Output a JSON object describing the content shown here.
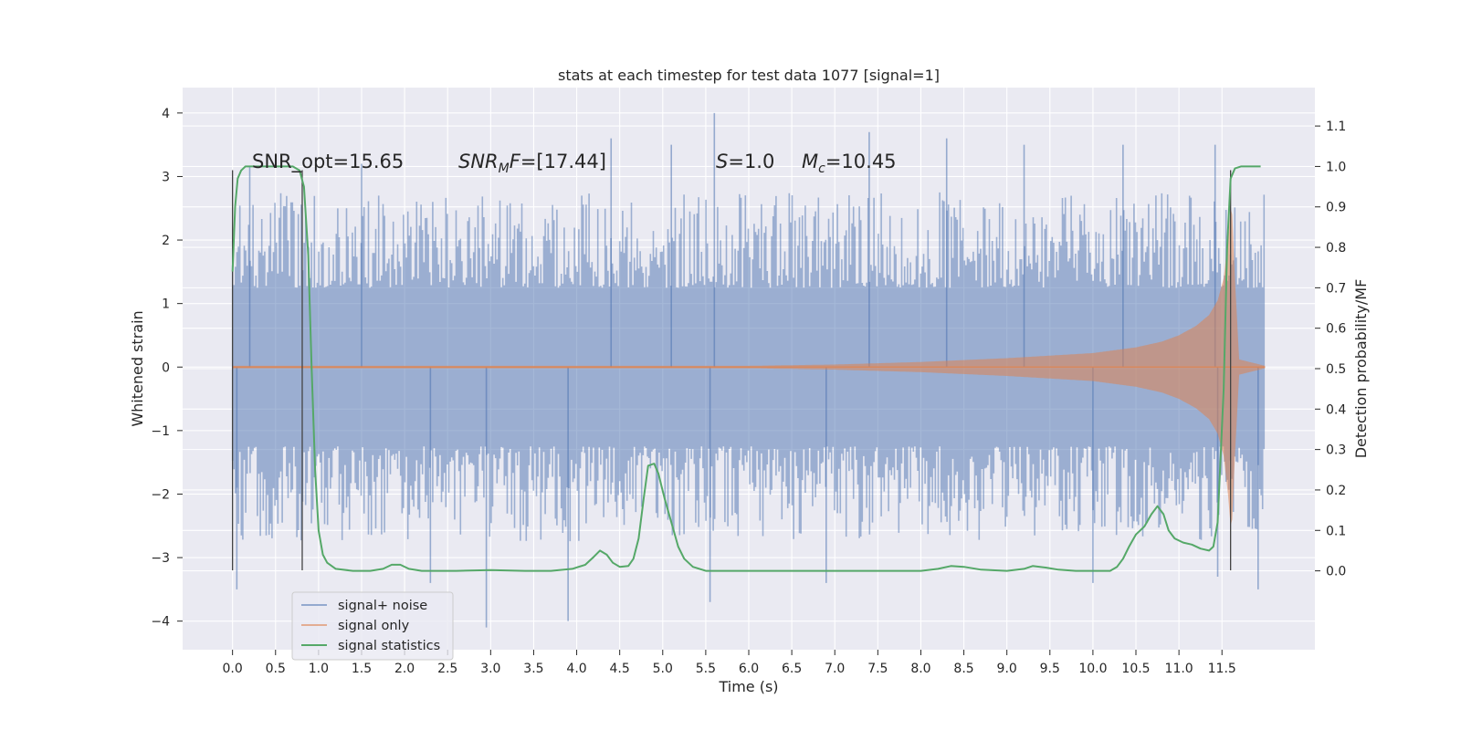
{
  "chart_data": {
    "type": "line",
    "title": "stats at each timestep for test data 1077 [signal=1]",
    "xlabel": "Time (s)",
    "ylabel": "Whitened strain",
    "y2label": "Detection probability/MF",
    "xlim": [
      -0.58,
      12.58
    ],
    "ylim": [
      -4.45,
      4.4
    ],
    "y2lim": [
      -0.195,
      1.195
    ],
    "x_ticks": [
      0.0,
      0.5,
      1.0,
      1.5,
      2.0,
      2.5,
      3.0,
      3.5,
      4.0,
      4.5,
      5.0,
      5.5,
      6.0,
      6.5,
      7.0,
      7.5,
      8.0,
      8.5,
      9.0,
      9.5,
      10.0,
      10.5,
      11.0,
      11.5
    ],
    "x_tick_labels": [
      "0.0",
      "0.5",
      "1.0",
      "1.5",
      "2.0",
      "2.5",
      "3.0",
      "3.5",
      "4.0",
      "4.5",
      "5.0",
      "5.5",
      "6.0",
      "6.5",
      "7.0",
      "7.5",
      "8.0",
      "8.5",
      "9.0",
      "9.5",
      "10.0",
      "10.5",
      "11.0",
      "11.5"
    ],
    "y_ticks": [
      4,
      3,
      2,
      1,
      0,
      -1,
      -2,
      -3,
      -4
    ],
    "y_tick_labels": [
      "4",
      "3",
      "2",
      "1",
      "0",
      "−1",
      "−2",
      "−3",
      "−4"
    ],
    "y2_ticks": [
      1.1,
      1.0,
      0.9,
      0.8,
      0.7,
      0.6,
      0.5,
      0.4,
      0.3,
      0.2,
      0.1,
      0.0
    ],
    "y2_tick_labels": [
      "1.1",
      "1.0",
      "0.9",
      "0.8",
      "0.7",
      "0.6",
      "0.5",
      "0.4",
      "0.3",
      "0.2",
      "0.1",
      "0.0"
    ],
    "grid": true,
    "legend_position": "lower-left",
    "colors": {
      "noise": "#4c72b0",
      "signal": "#dd8452",
      "stats": "#55a868",
      "background": "#eaeaf2",
      "grid": "#ffffff",
      "vline": "#444444"
    },
    "series": [
      {
        "name": "signal+ noise",
        "kind": "noise_band",
        "x_range": [
          0.0,
          12.0
        ],
        "typical_range": [
          -2.0,
          2.0
        ],
        "spikes": [
          {
            "x": 0.2,
            "y": 3.15
          },
          {
            "x": 0.05,
            "y": -3.5
          },
          {
            "x": 1.5,
            "y": 3.2
          },
          {
            "x": 2.3,
            "y": -3.4
          },
          {
            "x": 2.95,
            "y": -4.1
          },
          {
            "x": 3.9,
            "y": -4.0
          },
          {
            "x": 4.4,
            "y": 3.6
          },
          {
            "x": 5.1,
            "y": 3.5
          },
          {
            "x": 5.55,
            "y": -3.7
          },
          {
            "x": 5.6,
            "y": 4.0
          },
          {
            "x": 6.9,
            "y": -3.4
          },
          {
            "x": 7.4,
            "y": 3.7
          },
          {
            "x": 8.3,
            "y": 3.6
          },
          {
            "x": 9.2,
            "y": 3.5
          },
          {
            "x": 10.0,
            "y": -3.4
          },
          {
            "x": 10.35,
            "y": 3.5
          },
          {
            "x": 11.45,
            "y": -3.3
          },
          {
            "x": 11.42,
            "y": 3.5
          },
          {
            "x": 11.92,
            "y": -3.5
          }
        ]
      },
      {
        "name": "signal only",
        "kind": "chirp_envelope",
        "x": [
          0.0,
          1.0,
          2.0,
          3.0,
          4.0,
          5.0,
          6.0,
          6.5,
          7.0,
          7.5,
          8.0,
          8.5,
          9.0,
          9.5,
          10.0,
          10.5,
          10.8,
          11.0,
          11.2,
          11.35,
          11.45,
          11.52,
          11.57,
          11.6,
          11.62,
          11.65,
          11.7,
          12.0
        ],
        "amplitude": [
          0.02,
          0.02,
          0.02,
          0.02,
          0.02,
          0.02,
          0.02,
          0.03,
          0.04,
          0.06,
          0.08,
          0.11,
          0.14,
          0.18,
          0.22,
          0.31,
          0.4,
          0.5,
          0.65,
          0.82,
          1.05,
          1.4,
          2.0,
          2.5,
          2.4,
          1.4,
          0.12,
          0.02
        ]
      },
      {
        "name": "signal statistics",
        "kind": "line",
        "axis": "right",
        "x": [
          0.0,
          0.03,
          0.06,
          0.1,
          0.15,
          0.2,
          0.3,
          0.5,
          0.7,
          0.78,
          0.83,
          0.88,
          0.92,
          0.96,
          1.0,
          1.05,
          1.1,
          1.2,
          1.4,
          1.6,
          1.75,
          1.85,
          1.95,
          2.05,
          2.2,
          2.6,
          3.0,
          3.4,
          3.7,
          3.95,
          4.1,
          4.2,
          4.27,
          4.35,
          4.42,
          4.5,
          4.6,
          4.66,
          4.72,
          4.78,
          4.83,
          4.9,
          4.95,
          5.02,
          5.1,
          5.18,
          5.25,
          5.35,
          5.5,
          6.0,
          7.0,
          8.0,
          8.2,
          8.35,
          8.5,
          8.7,
          9.0,
          9.2,
          9.3,
          9.45,
          9.6,
          9.8,
          10.0,
          10.2,
          10.28,
          10.35,
          10.42,
          10.5,
          10.55,
          10.6,
          10.68,
          10.75,
          10.82,
          10.88,
          10.95,
          11.05,
          11.15,
          11.25,
          11.35,
          11.4,
          11.45,
          11.52,
          11.56,
          11.6,
          11.65,
          11.72,
          11.8,
          11.95
        ],
        "values": [
          0.74,
          0.9,
          0.97,
          0.99,
          1.0,
          1.0,
          1.0,
          1.0,
          1.0,
          0.99,
          0.95,
          0.78,
          0.5,
          0.25,
          0.1,
          0.04,
          0.02,
          0.005,
          0.0,
          0.0,
          0.005,
          0.015,
          0.015,
          0.005,
          0.0,
          0.0,
          0.002,
          0.0,
          0.0,
          0.005,
          0.015,
          0.035,
          0.05,
          0.04,
          0.02,
          0.01,
          0.012,
          0.03,
          0.08,
          0.18,
          0.26,
          0.265,
          0.24,
          0.18,
          0.12,
          0.06,
          0.03,
          0.01,
          0.0,
          0.0,
          0.0,
          0.0,
          0.005,
          0.012,
          0.01,
          0.003,
          0.0,
          0.005,
          0.012,
          0.008,
          0.003,
          0.0,
          0.0,
          0.0,
          0.01,
          0.03,
          0.06,
          0.09,
          0.1,
          0.11,
          0.14,
          0.16,
          0.14,
          0.1,
          0.08,
          0.07,
          0.065,
          0.055,
          0.05,
          0.06,
          0.12,
          0.45,
          0.8,
          0.97,
          0.995,
          1.0,
          1.0,
          1.0
        ]
      }
    ],
    "vlines": [
      {
        "x": 0.0,
        "y": [
          -3.2,
          3.1
        ]
      },
      {
        "x": 0.81,
        "y": [
          -3.2,
          3.1
        ]
      },
      {
        "x": 11.6,
        "y": [
          -3.2,
          3.1
        ]
      }
    ],
    "annotations": [
      {
        "id": "snr-opt",
        "text": "SNR_opt=15.65",
        "x": 0.2,
        "y": 3.3
      },
      {
        "id": "snr-mf",
        "text_main": "SNR",
        "text_sub": "M",
        "text_tail": "F=[17.44]",
        "x": 2.6,
        "y": 3.3
      },
      {
        "id": "s",
        "text_main": "S",
        "text_tail": "=1.0",
        "x": 5.6,
        "y": 3.3
      },
      {
        "id": "mc",
        "text_main": "M",
        "text_sub": "c",
        "text_tail": "=10.45",
        "x": 6.6,
        "y": 3.3
      }
    ]
  }
}
